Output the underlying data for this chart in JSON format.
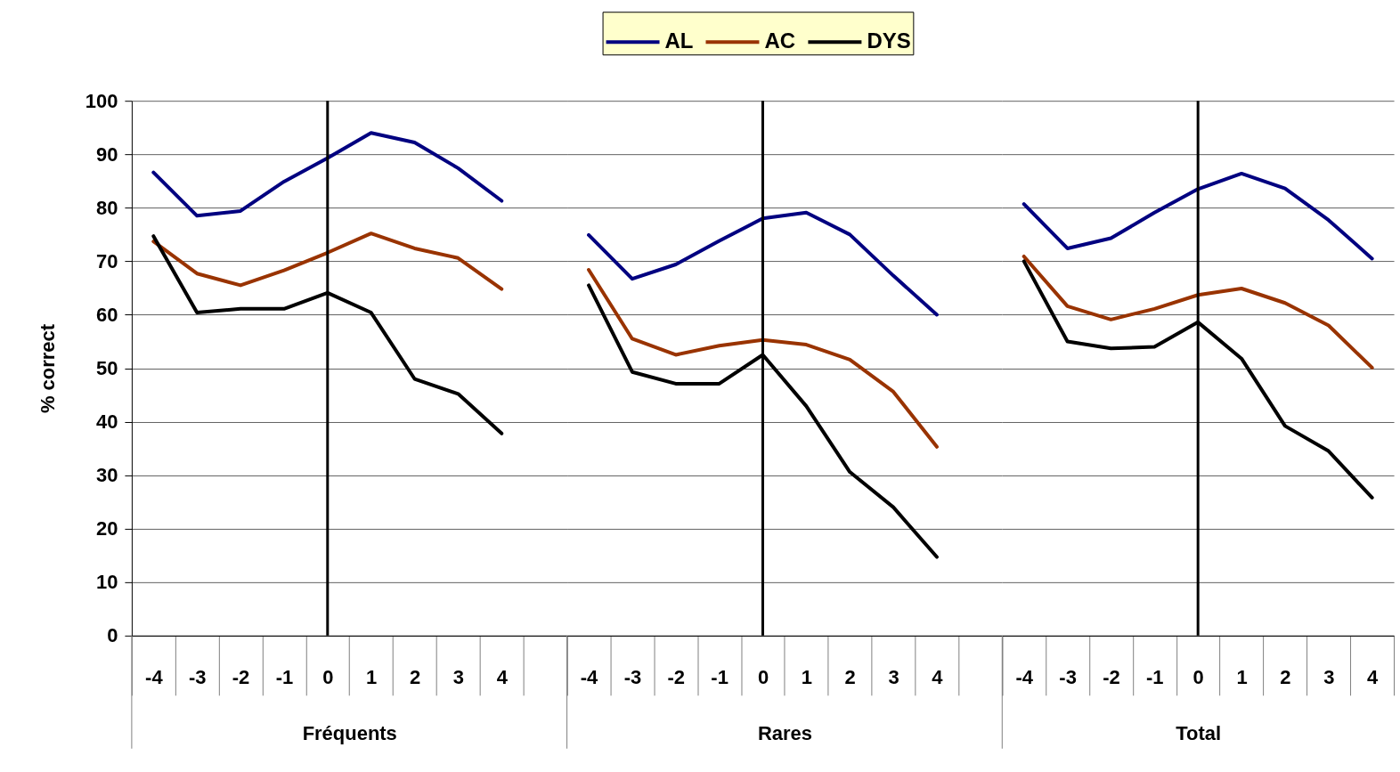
{
  "chart_data": [
    {
      "type": "line",
      "xlabel": "Fréquents",
      "ylabel": "% correct",
      "legend": "top",
      "categories": [
        "-4",
        "-3",
        "-2",
        "-1",
        "0",
        "1",
        "2",
        "3",
        "4",
        null
      ],
      "series": [
        {
          "name": "AL",
          "color": "#000080",
          "values": [
            86.6,
            78.5,
            79.4,
            84.9,
            89.3,
            94.0,
            92.2,
            87.4,
            81.3,
            null
          ]
        },
        {
          "name": "AC",
          "color": "#993300",
          "values": [
            73.7,
            67.7,
            65.5,
            68.3,
            71.6,
            75.2,
            72.4,
            70.6,
            64.8,
            null
          ]
        },
        {
          "name": "DYS",
          "color": "#000000",
          "values": [
            74.7,
            60.4,
            61.1,
            61.1,
            64.1,
            60.4,
            48.0,
            45.2,
            37.8,
            null
          ]
        }
      ],
      "ylim": [
        0,
        100
      ],
      "yticks": [
        0,
        10,
        20,
        30,
        40,
        50,
        60,
        70,
        80,
        90,
        100
      ],
      "grid": "y",
      "ref_lines": [
        {
          "axis": "x",
          "value": "0",
          "color": "#000000"
        }
      ]
    },
    {
      "type": "line",
      "xlabel": "Rares",
      "tick_labels": "x",
      "categories": [
        "-4",
        "-3",
        "-2",
        "-1",
        "0",
        "1",
        "2",
        "3",
        "4",
        null
      ],
      "series": [
        {
          "name": "AL",
          "color": "#000080",
          "values": [
            74.9,
            66.7,
            69.4,
            73.8,
            78.0,
            79.1,
            75.0,
            67.3,
            60.0,
            null
          ]
        },
        {
          "name": "AC",
          "color": "#993300",
          "values": [
            68.4,
            55.5,
            52.5,
            54.2,
            55.3,
            54.4,
            51.6,
            45.6,
            35.3,
            null
          ]
        },
        {
          "name": "DYS",
          "color": "#000000",
          "values": [
            65.5,
            49.3,
            47.1,
            47.1,
            52.5,
            42.9,
            30.6,
            24.0,
            14.7,
            null
          ]
        }
      ],
      "ylim": [
        0,
        100
      ],
      "yticks": [
        0,
        10,
        20,
        30,
        40,
        50,
        60,
        70,
        80,
        90,
        100
      ],
      "grid": "y",
      "ref_lines": [
        {
          "axis": "x",
          "value": "0",
          "color": "#000000"
        }
      ]
    },
    {
      "type": "line",
      "xlabel": "Total",
      "tick_labels": "x",
      "categories": [
        "-4",
        "-3",
        "-2",
        "-1",
        "0",
        "1",
        "2",
        "3",
        "4"
      ],
      "series": [
        {
          "name": "AL",
          "color": "#000080",
          "values": [
            80.7,
            72.4,
            74.3,
            79.1,
            83.5,
            86.4,
            83.6,
            77.7,
            70.5
          ]
        },
        {
          "name": "AC",
          "color": "#993300",
          "values": [
            70.9,
            61.6,
            59.1,
            61.1,
            63.7,
            64.9,
            62.2,
            58.0,
            50.1
          ]
        },
        {
          "name": "DYS",
          "color": "#000000",
          "values": [
            70.0,
            55.0,
            53.7,
            54.0,
            58.6,
            51.8,
            39.2,
            34.5,
            25.8
          ]
        }
      ],
      "ylim": [
        0,
        100
      ],
      "yticks": [
        0,
        10,
        20,
        30,
        40,
        50,
        60,
        70,
        80,
        90,
        100
      ],
      "grid": "y",
      "ref_lines": [
        {
          "axis": "x",
          "value": "0",
          "color": "#000000"
        }
      ]
    }
  ]
}
